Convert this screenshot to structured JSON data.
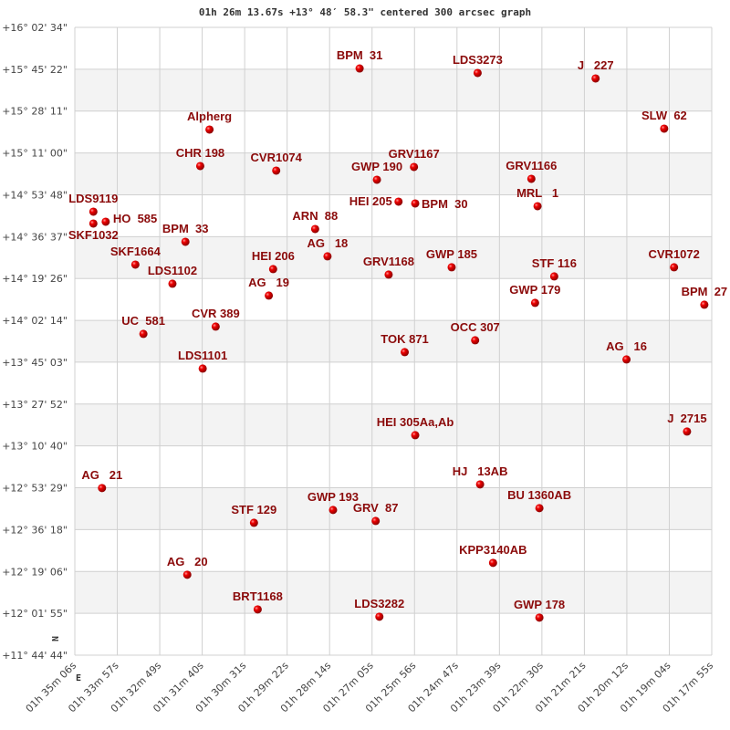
{
  "chart_data": {
    "type": "scatter",
    "title": "01h 26m 13.67s +13° 48′ 58.3\" centered 300 arcsec graph",
    "xlabel": "",
    "ylabel": "",
    "x_direction": "right-to-left (RA decreases to the right)",
    "xlim": [
      "01h 35m 06s",
      "01h 17m 55s"
    ],
    "ylim": [
      "+11° 44' 44\"",
      "+16° 02' 34\""
    ],
    "grid": true,
    "banded_rows": true,
    "x_ticks": [
      "01h 35m 06s",
      "01h 33m 57s",
      "01h 32m 49s",
      "01h 31m 40s",
      "01h 30m 31s",
      "01h 29m 22s",
      "01h 28m 14s",
      "01h 27m 05s",
      "01h 25m 56s",
      "01h 24m 47s",
      "01h 23m 39s",
      "01h 22m 30s",
      "01h 21m 21s",
      "01h 20m 12s",
      "01h 19m 04s",
      "01h 17m 55s"
    ],
    "y_ticks": [
      "+16° 02' 34\"",
      "+15° 45' 22\"",
      "+15° 28' 11\"",
      "+15° 11' 00\"",
      "+14° 53' 48\"",
      "+14° 36' 37\"",
      "+14° 19' 26\"",
      "+14° 02' 14\"",
      "+13° 45' 03\"",
      "+13° 27' 52\"",
      "+13° 10' 40\"",
      "+12° 53' 29\"",
      "+12° 36' 18\"",
      "+12° 19' 06\"",
      "+12° 01' 55\"",
      "+11° 44' 44\""
    ],
    "compass": {
      "north": "N",
      "east": "E"
    },
    "colors": {
      "marker": "#e00000",
      "label": "#8b0a0a",
      "band": "#f3f3f3",
      "grid": "#d0d0d0"
    },
    "points": [
      {
        "name": "BPM  31",
        "ra": "01h 27m 25s",
        "dec": "+15° 45' 42\""
      },
      {
        "name": "Alpherg",
        "ra": "01h 31m 28s",
        "dec": "+15° 20' 36\""
      },
      {
        "name": "CHR 198",
        "ra": "01h 31m 43s",
        "dec": "+15° 05' 37\""
      },
      {
        "name": "CVR1074",
        "ra": "01h 29m 40s",
        "dec": "+15° 03' 45\""
      },
      {
        "name": "LDS9119",
        "ra": "01h 34m 36s",
        "dec": "+14° 46' 53\""
      },
      {
        "name": "SKF1032",
        "ra": "01h 34m 36s",
        "dec": "+14° 42' 01\""
      },
      {
        "name": "HO  585",
        "ra": "01h 34m 16s",
        "dec": "+14° 42' 46\""
      },
      {
        "name": "ARN  88",
        "ra": "01h 28m 37s",
        "dec": "+14° 39' 46\""
      },
      {
        "name": "LDS3273",
        "ra": "01h 24m 14s",
        "dec": "+15° 43' 50\""
      },
      {
        "name": "J   227",
        "ra": "01h 21m 03s",
        "dec": "+15° 41' 35\""
      },
      {
        "name": "SLW  62",
        "ra": "01h 19m 12s",
        "dec": "+15° 20' 59\""
      },
      {
        "name": "GRV1167",
        "ra": "01h 25m 57s",
        "dec": "+15° 05' 15\""
      },
      {
        "name": "GWP 190",
        "ra": "01h 26m 57s",
        "dec": "+15° 00' 00\""
      },
      {
        "name": "GRV1166",
        "ra": "01h 22m 47s",
        "dec": "+15° 00' 22\""
      },
      {
        "name": "HEI 205",
        "ra": "01h 26m 22s",
        "dec": "+14° 51' 00\""
      },
      {
        "name": "BPM  30",
        "ra": "01h 25m 55s",
        "dec": "+14° 50' 15\""
      },
      {
        "name": "MRL   1",
        "ra": "01h 22m 37s",
        "dec": "+14° 49' 08\""
      },
      {
        "name": "BPM  33",
        "ra": "01h 32m 07s",
        "dec": "+14° 34' 31\""
      },
      {
        "name": "SKF1664",
        "ra": "01h 33m 28s",
        "dec": "+14° 25' 09\""
      },
      {
        "name": "LDS1102",
        "ra": "01h 32m 28s",
        "dec": "+14° 17' 17\""
      },
      {
        "name": "HEI 206",
        "ra": "01h 29m 45s",
        "dec": "+14° 23' 17\""
      },
      {
        "name": "AG   19",
        "ra": "01h 29m 52s",
        "dec": "+14° 12' 25\""
      },
      {
        "name": "AG   18",
        "ra": "01h 28m 17s",
        "dec": "+14° 28' 32\""
      },
      {
        "name": "GRV1168",
        "ra": "01h 26m 38s",
        "dec": "+14° 21' 02\""
      },
      {
        "name": "UC  581",
        "ra": "01h 33m 15s",
        "dec": "+13° 56' 41\""
      },
      {
        "name": "CVR 389",
        "ra": "01h 31m 18s",
        "dec": "+13° 59' 41\""
      },
      {
        "name": "LDS1101",
        "ra": "01h 31m 39s",
        "dec": "+13° 42' 26\""
      },
      {
        "name": "GWP 185",
        "ra": "01h 24m 56s",
        "dec": "+14° 24' 02\""
      },
      {
        "name": "STF 116",
        "ra": "01h 22m 10s",
        "dec": "+14° 20' 17\""
      },
      {
        "name": "CVR1072",
        "ra": "01h 18m 56s",
        "dec": "+14° 24' 02\""
      },
      {
        "name": "GWP 179",
        "ra": "01h 22m 41s",
        "dec": "+14° 09' 25\""
      },
      {
        "name": "BPM  27",
        "ra": "01h 18m 07s",
        "dec": "+14° 08' 40\""
      },
      {
        "name": "OCC 307",
        "ra": "01h 24m 18s",
        "dec": "+13° 54' 03\""
      },
      {
        "name": "TOK 871",
        "ra": "01h 26m 12s",
        "dec": "+13° 49' 11\""
      },
      {
        "name": "AG   16",
        "ra": "01h 20m 13s",
        "dec": "+13° 46' 11\""
      },
      {
        "name": "HEI 305Aa,Ab",
        "ra": "01h 25m 55s",
        "dec": "+13° 15' 05\""
      },
      {
        "name": "J  2715",
        "ra": "01h 18m 35s",
        "dec": "+13° 16' 35\""
      },
      {
        "name": "AG   21",
        "ra": "01h 34m 22s",
        "dec": "+12° 53' 22\""
      },
      {
        "name": "HJ   13AB",
        "ra": "01h 24m 10s",
        "dec": "+12° 54' 52\""
      },
      {
        "name": "BU 1360AB",
        "ra": "01h 22m 34s",
        "dec": "+12° 45' 07\""
      },
      {
        "name": "GWP 193",
        "ra": "01h 28m 08s",
        "dec": "+12° 44' 22\""
      },
      {
        "name": "GRV  87",
        "ra": "01h 26m 59s",
        "dec": "+12° 39' 52\""
      },
      {
        "name": "STF 129",
        "ra": "01h 30m 16s",
        "dec": "+12° 39' 07\""
      },
      {
        "name": "KPP3140AB",
        "ra": "01h 23m 49s",
        "dec": "+12° 22' 38\""
      },
      {
        "name": "AG   20",
        "ra": "01h 32m 04s",
        "dec": "+12° 17' 46\""
      },
      {
        "name": "BRT1168",
        "ra": "01h 30m 10s",
        "dec": "+12° 03' 32\""
      },
      {
        "name": "LDS3282",
        "ra": "01h 26m 53s",
        "dec": "+12° 00' 32\""
      },
      {
        "name": "GWP 178",
        "ra": "01h 22m 34s",
        "dec": "+12° 00' 09\""
      }
    ]
  }
}
